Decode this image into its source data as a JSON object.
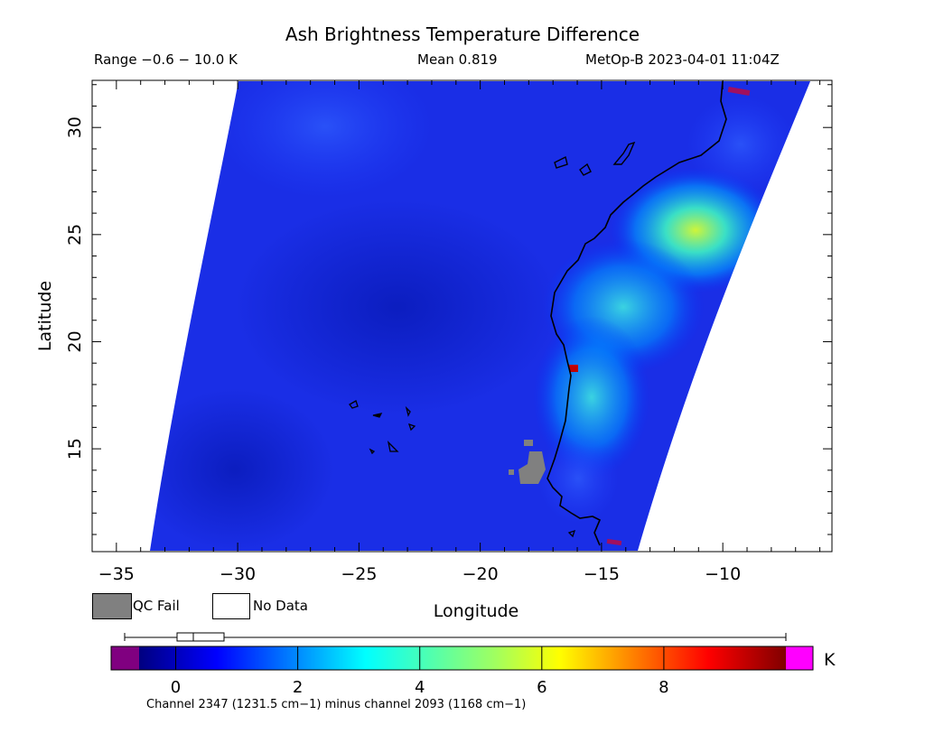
{
  "header": {
    "title": "Ash Brightness Temperature Difference",
    "range": "Range −0.6 − 10.0 K",
    "mean": "Mean 0.819",
    "satellite": "MetOp-B 2023-04-01 11:04Z"
  },
  "map": {
    "xlabel": "Longitude",
    "ylabel": "Latitude",
    "x_ticks": [
      -35,
      -30,
      -25,
      -20,
      -15,
      -10
    ],
    "y_ticks": [
      15,
      20,
      25,
      30
    ],
    "lon_range": [
      -36,
      -5.5
    ],
    "lat_range": [
      10.2,
      32.2
    ]
  },
  "legend": {
    "qc_fail": "QC Fail",
    "no_data": "No Data",
    "qc_fail_color": "#808080",
    "no_data_color": "#ffffff"
  },
  "colorbar": {
    "unit": "K",
    "ticks": [
      "0",
      "2",
      "4",
      "6",
      "8"
    ],
    "tick_values": [
      0,
      2,
      4,
      6,
      8
    ],
    "range": [
      -0.6,
      10.0
    ],
    "under_color": "#800080",
    "over_color": "#ff00ff",
    "footer": "Channel 2347 (1231.5 cm−1) minus channel 2093 (1168 cm−1)"
  }
}
